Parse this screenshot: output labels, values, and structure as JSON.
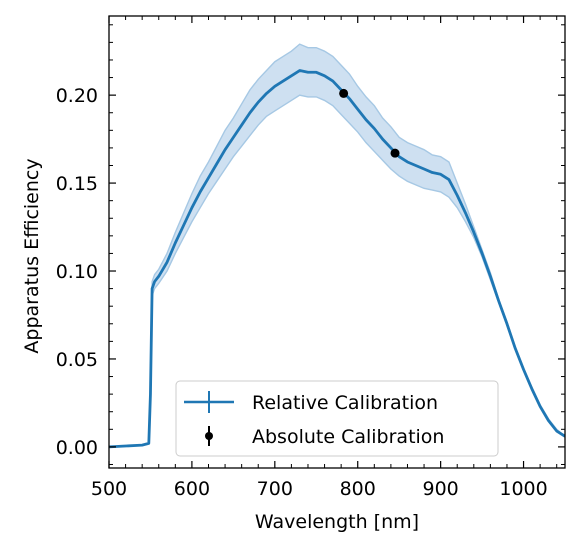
{
  "chart_data": {
    "type": "line",
    "xlabel": "Wavelength [nm]",
    "ylabel": "Apparatus Efficiency",
    "xlim": [
      500,
      1050
    ],
    "ylim": [
      -0.012,
      0.245
    ],
    "xticks": [
      500,
      600,
      700,
      800,
      900,
      1000
    ],
    "xtick_labels": [
      "500",
      "600",
      "700",
      "800",
      "900",
      "1000"
    ],
    "yticks": [
      0.0,
      0.05,
      0.1,
      0.15,
      0.2
    ],
    "ytick_labels": [
      "0.00",
      "0.05",
      "0.10",
      "0.15",
      "0.20"
    ],
    "grid": false,
    "legend_placement": "lower-center",
    "colors": {
      "line": "#1f77b4",
      "band": "#c6dbef",
      "band_edge": "#a6c8e4",
      "points": "#000000"
    },
    "series": [
      {
        "name": "Relative Calibration",
        "type": "line-with-uncertainty-band",
        "x": [
          500,
          520,
          540,
          548,
          550,
          552,
          555,
          560,
          570,
          580,
          590,
          600,
          610,
          620,
          630,
          640,
          650,
          660,
          670,
          680,
          690,
          700,
          710,
          720,
          730,
          740,
          750,
          760,
          770,
          780,
          790,
          800,
          810,
          820,
          830,
          840,
          850,
          860,
          870,
          880,
          890,
          900,
          910,
          920,
          930,
          940,
          950,
          960,
          970,
          980,
          990,
          1000,
          1010,
          1020,
          1030,
          1040,
          1050
        ],
        "y": [
          0.0,
          0.0005,
          0.001,
          0.002,
          0.03,
          0.09,
          0.094,
          0.097,
          0.105,
          0.116,
          0.126,
          0.136,
          0.145,
          0.153,
          0.161,
          0.169,
          0.176,
          0.183,
          0.19,
          0.196,
          0.201,
          0.205,
          0.208,
          0.211,
          0.214,
          0.213,
          0.213,
          0.211,
          0.208,
          0.203,
          0.198,
          0.192,
          0.186,
          0.181,
          0.175,
          0.17,
          0.165,
          0.162,
          0.16,
          0.158,
          0.156,
          0.155,
          0.152,
          0.143,
          0.133,
          0.122,
          0.11,
          0.097,
          0.083,
          0.07,
          0.056,
          0.044,
          0.033,
          0.023,
          0.015,
          0.009,
          0.006
        ],
        "lower": [
          0.0,
          0.0005,
          0.001,
          0.002,
          0.03,
          0.086,
          0.09,
          0.093,
          0.1,
          0.11,
          0.119,
          0.128,
          0.136,
          0.144,
          0.151,
          0.158,
          0.165,
          0.171,
          0.177,
          0.183,
          0.188,
          0.191,
          0.194,
          0.197,
          0.2,
          0.199,
          0.199,
          0.197,
          0.194,
          0.189,
          0.184,
          0.179,
          0.173,
          0.168,
          0.163,
          0.158,
          0.154,
          0.151,
          0.149,
          0.147,
          0.146,
          0.145,
          0.142,
          0.136,
          0.128,
          0.119,
          0.108,
          0.095,
          0.082,
          0.069,
          0.056,
          0.044,
          0.033,
          0.023,
          0.015,
          0.009,
          0.006
        ],
        "upper": [
          0.0,
          0.0005,
          0.001,
          0.002,
          0.03,
          0.094,
          0.098,
          0.101,
          0.11,
          0.122,
          0.133,
          0.144,
          0.154,
          0.162,
          0.171,
          0.18,
          0.187,
          0.195,
          0.203,
          0.209,
          0.214,
          0.219,
          0.222,
          0.225,
          0.229,
          0.227,
          0.227,
          0.225,
          0.222,
          0.217,
          0.212,
          0.205,
          0.199,
          0.194,
          0.187,
          0.182,
          0.176,
          0.173,
          0.171,
          0.169,
          0.166,
          0.165,
          0.162,
          0.15,
          0.138,
          0.125,
          0.112,
          0.099,
          0.084,
          0.071,
          0.057,
          0.045,
          0.034,
          0.024,
          0.016,
          0.01,
          0.006
        ]
      },
      {
        "name": "Absolute Calibration",
        "type": "points-with-errorbars",
        "points": [
          {
            "x": 783,
            "y": 0.201,
            "yerr": 0.001
          },
          {
            "x": 845,
            "y": 0.167,
            "yerr": 0.001
          }
        ]
      }
    ]
  }
}
